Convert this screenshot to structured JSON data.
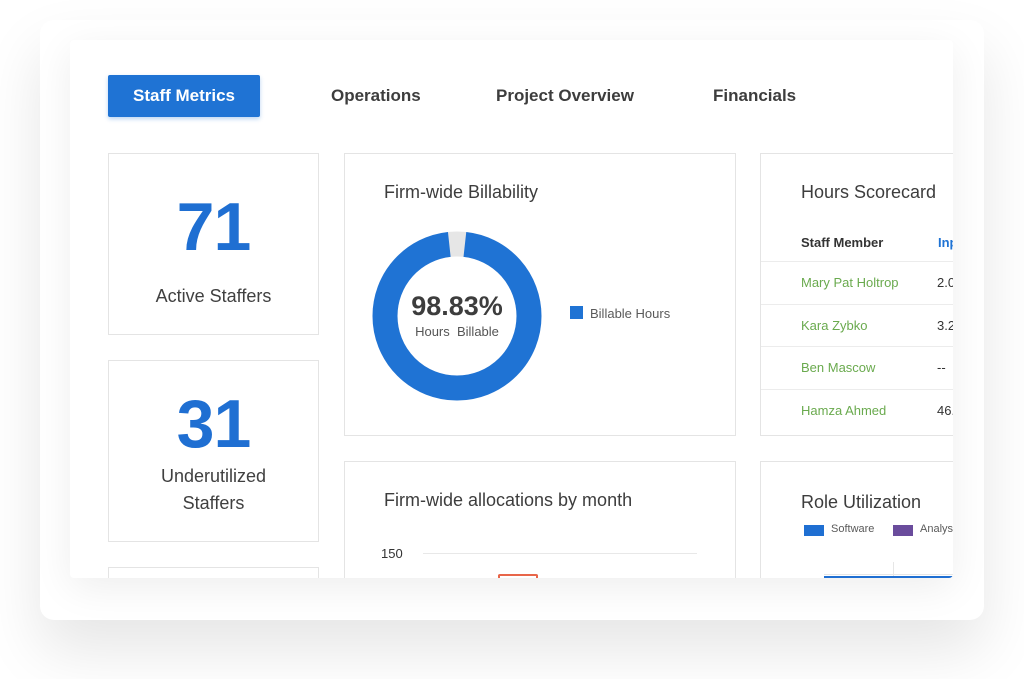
{
  "tabs": [
    {
      "label": "Staff Metrics",
      "active": true
    },
    {
      "label": "Operations",
      "active": false
    },
    {
      "label": "Project Overview",
      "active": false
    },
    {
      "label": "Financials",
      "active": false
    }
  ],
  "stats": {
    "active": {
      "value": "71",
      "label": "Active Staffers"
    },
    "underutilized": {
      "value": "31",
      "label_line1": "Underutilized",
      "label_line2": "Staffers"
    }
  },
  "billability": {
    "title": "Firm-wide Billability",
    "percent_text": "98.83%",
    "percent_value": 98.83,
    "sub_label": "Hours  Billable",
    "legend": "Billable Hours",
    "color": "#1f73d4",
    "remainder_color": "#e6e6e6"
  },
  "scorecard": {
    "title": "Hours Scorecard",
    "col_member": "Staff Member",
    "col_second": "Inp",
    "rows": [
      {
        "name": "Mary Pat Holtrop",
        "value": "2.0"
      },
      {
        "name": "Kara Zybko",
        "value": "3.2"
      },
      {
        "name": "Ben Mascow",
        "value": "--"
      },
      {
        "name": "Hamza Ahmed",
        "value": "46."
      }
    ]
  },
  "allocations": {
    "title": "Firm-wide allocations by month",
    "y_tick_top": "150"
  },
  "role_utilization": {
    "title": "Role Utilization",
    "legend": [
      {
        "label": "Software",
        "color": "#1f6fd2"
      },
      {
        "label": "Analys",
        "color": "#6a4c9c"
      }
    ]
  },
  "colors": {
    "accent": "#1f73d4",
    "link_green": "#6aaa4e",
    "bar_orange": "#e8664a"
  }
}
